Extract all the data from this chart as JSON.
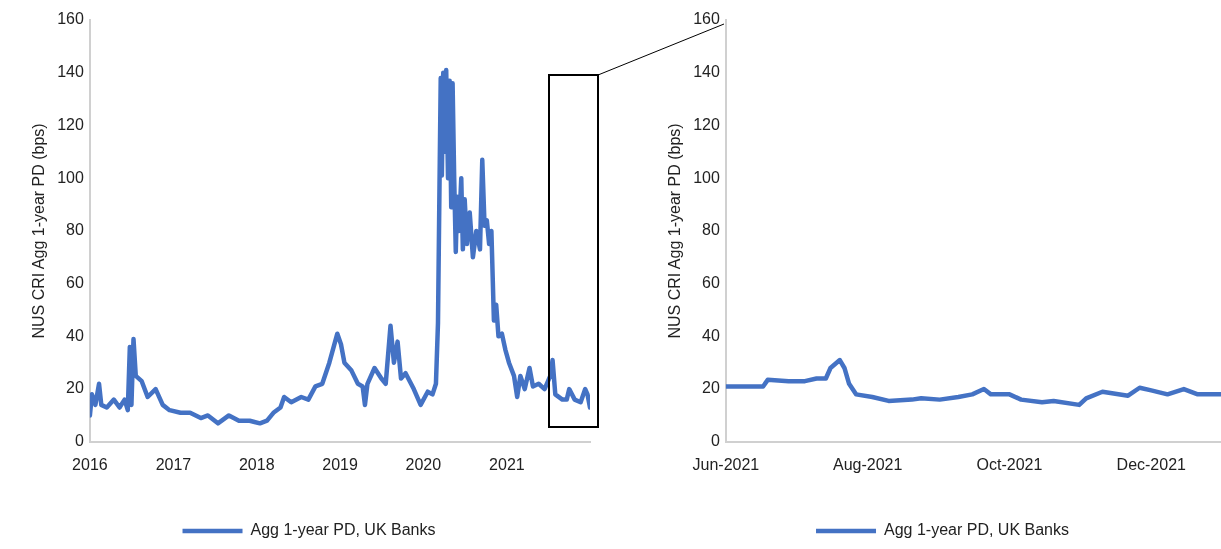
{
  "chart_data": [
    {
      "type": "line",
      "ylabel": "NUS CRI Agg 1-year PD (bps)",
      "xlim": [
        "2016-01-01",
        "2021-12-31"
      ],
      "xticks": [
        "2016",
        "2017",
        "2018",
        "2019",
        "2020",
        "2021"
      ],
      "ylim": [
        0,
        160
      ],
      "yticks": [
        0,
        20,
        40,
        60,
        80,
        100,
        120,
        140,
        160
      ],
      "grid": false,
      "legend": "bottom",
      "marker": "none",
      "line_style": "solid",
      "series": [
        {
          "name": "Agg 1-year PD, UK Banks",
          "color": "#4472c4",
          "x": [
            "2016-01-01",
            "2016-01-10",
            "2016-01-25",
            "2016-02-10",
            "2016-02-20",
            "2016-03-15",
            "2016-04-15",
            "2016-05-10",
            "2016-06-01",
            "2016-06-15",
            "2016-06-24",
            "2016-07-01",
            "2016-07-10",
            "2016-07-20",
            "2016-08-15",
            "2016-09-10",
            "2016-10-15",
            "2016-11-15",
            "2016-12-15",
            "2017-02-01",
            "2017-03-15",
            "2017-05-01",
            "2017-06-01",
            "2017-07-15",
            "2017-09-01",
            "2017-10-15",
            "2017-12-01",
            "2018-01-15",
            "2018-02-15",
            "2018-03-15",
            "2018-04-15",
            "2018-05-01",
            "2018-06-01",
            "2018-07-15",
            "2018-08-15",
            "2018-09-15",
            "2018-10-15",
            "2018-11-15",
            "2018-12-20",
            "2019-01-05",
            "2019-01-20",
            "2019-02-20",
            "2019-03-20",
            "2019-04-10",
            "2019-04-20",
            "2019-05-01",
            "2019-06-01",
            "2019-07-01",
            "2019-07-20",
            "2019-08-10",
            "2019-08-25",
            "2019-09-10",
            "2019-09-25",
            "2019-10-15",
            "2019-11-20",
            "2019-12-20",
            "2020-01-20",
            "2020-02-10",
            "2020-02-25",
            "2020-03-05",
            "2020-03-12",
            "2020-03-17",
            "2020-03-22",
            "2020-03-28",
            "2020-04-05",
            "2020-04-10",
            "2020-04-18",
            "2020-04-25",
            "2020-05-02",
            "2020-05-08",
            "2020-05-15",
            "2020-05-22",
            "2020-05-28",
            "2020-06-05",
            "2020-06-15",
            "2020-06-22",
            "2020-06-30",
            "2020-07-10",
            "2020-07-22",
            "2020-08-05",
            "2020-08-20",
            "2020-09-05",
            "2020-09-15",
            "2020-09-25",
            "2020-10-05",
            "2020-10-15",
            "2020-10-25",
            "2020-11-05",
            "2020-11-15",
            "2020-11-25",
            "2020-12-10",
            "2020-12-25",
            "2021-01-10",
            "2021-02-01",
            "2021-02-15",
            "2021-03-01",
            "2021-03-20",
            "2021-04-10",
            "2021-04-25",
            "2021-05-20",
            "2021-06-15",
            "2021-07-10",
            "2021-07-20",
            "2021-08-01",
            "2021-09-01",
            "2021-09-20",
            "2021-10-01",
            "2021-10-25",
            "2021-11-20",
            "2021-12-10",
            "2021-12-20",
            "2021-12-31"
          ],
          "values": [
            10,
            18,
            14,
            22,
            14,
            13,
            16,
            13,
            16,
            12,
            36,
            14,
            39,
            25,
            23,
            17,
            20,
            14,
            12,
            11,
            11,
            9,
            10,
            7,
            10,
            8,
            8,
            7,
            8,
            11,
            13,
            17,
            15,
            17,
            16,
            21,
            22,
            30,
            41,
            37,
            30,
            27,
            22,
            21,
            14,
            22,
            28,
            24,
            22,
            44,
            30,
            38,
            24,
            26,
            20,
            14,
            19,
            18,
            22,
            45,
            100,
            138,
            101,
            140,
            110,
            141,
            100,
            137,
            89,
            136,
            100,
            72,
            93,
            80,
            100,
            73,
            92,
            75,
            87,
            70,
            80,
            73,
            107,
            82,
            84,
            75,
            80,
            46,
            52,
            40,
            41,
            35,
            30,
            25,
            17,
            25,
            20,
            28,
            21,
            22,
            20,
            25,
            31,
            18,
            16,
            16,
            20,
            16,
            15,
            20,
            18,
            13
          ]
        }
      ]
    },
    {
      "type": "line",
      "ylabel": "NUS CRI Agg 1-year PD (bps)",
      "xlim": [
        "2021-06-01",
        "2021-12-31"
      ],
      "xticks": [
        {
          "value": "2021-06-01",
          "label": "Jun-2021"
        },
        {
          "value": "2021-08-01",
          "label": "Aug-2021"
        },
        {
          "value": "2021-10-01",
          "label": "Oct-2021"
        },
        {
          "value": "2021-12-01",
          "label": "Dec-2021"
        }
      ],
      "ylim": [
        0,
        160
      ],
      "yticks": [
        0,
        20,
        40,
        60,
        80,
        100,
        120,
        140,
        160
      ],
      "grid": false,
      "legend": "bottom",
      "marker": "none",
      "line_style": "solid",
      "series": [
        {
          "name": "Agg 1-year PD, UK Banks",
          "color": "#4472c4",
          "x": [
            "2021-06-01",
            "2021-06-10",
            "2021-06-17",
            "2021-06-19",
            "2021-06-28",
            "2021-07-05",
            "2021-07-10",
            "2021-07-14",
            "2021-07-16",
            "2021-07-20",
            "2021-07-22",
            "2021-07-24",
            "2021-07-27",
            "2021-08-03",
            "2021-08-10",
            "2021-08-20",
            "2021-08-24",
            "2021-09-01",
            "2021-09-09",
            "2021-09-15",
            "2021-09-20",
            "2021-09-23",
            "2021-10-01",
            "2021-10-06",
            "2021-10-15",
            "2021-10-20",
            "2021-10-31",
            "2021-11-03",
            "2021-11-10",
            "2021-11-21",
            "2021-11-26",
            "2021-12-01",
            "2021-12-08",
            "2021-12-15",
            "2021-12-21",
            "2021-12-31"
          ],
          "values": [
            21,
            21,
            21,
            23.5,
            23,
            23,
            24,
            24,
            28,
            31,
            28,
            22,
            18,
            17,
            15.5,
            16,
            16.5,
            16,
            17,
            18,
            20,
            18,
            18,
            16,
            15,
            15.5,
            14,
            16.5,
            19,
            17.5,
            20.5,
            19.5,
            18,
            20,
            18,
            18
          ]
        }
      ]
    }
  ]
}
